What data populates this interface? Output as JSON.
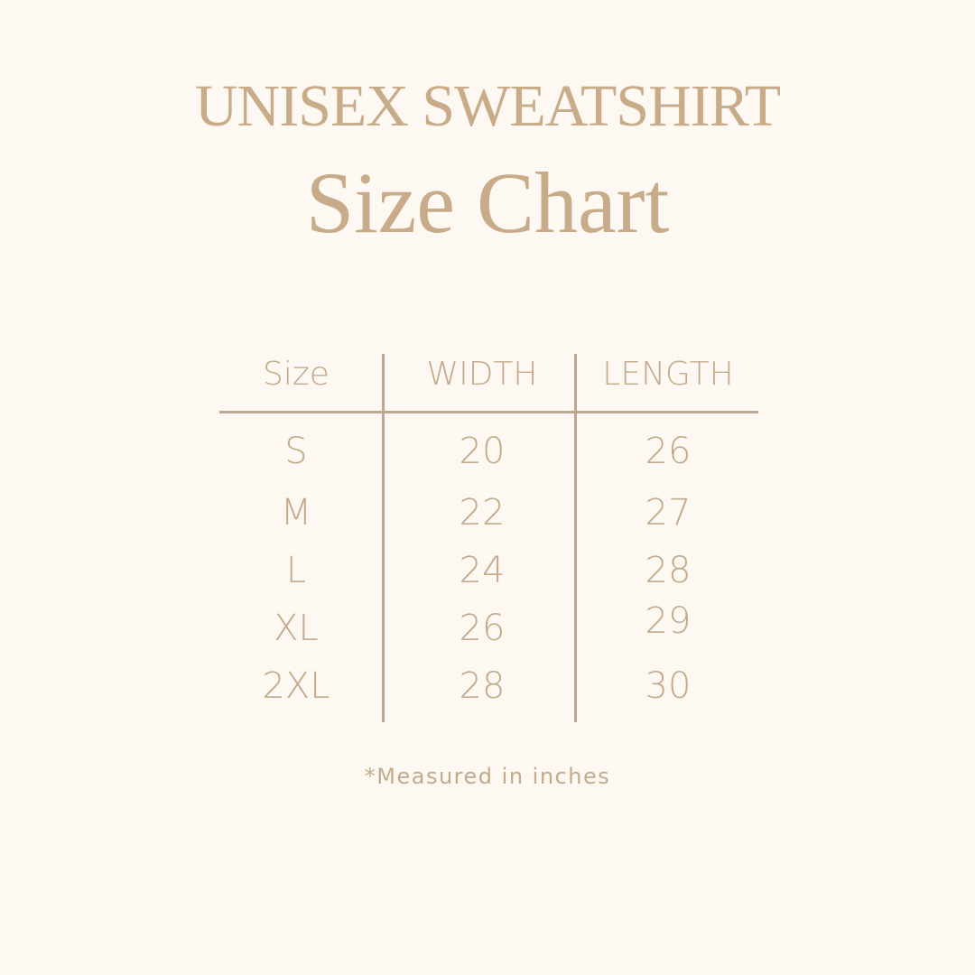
{
  "title": "UNISEX SWEATSHIRT",
  "subtitle": "Size Chart",
  "table": {
    "headers": [
      "Size",
      "WIDTH",
      "LENGTH"
    ],
    "rows": [
      [
        "S",
        "20",
        "26"
      ],
      [
        "M",
        "22",
        "27"
      ],
      [
        "L",
        "24",
        "28"
      ],
      [
        "XL",
        "26",
        "29"
      ],
      [
        "2XL",
        "28",
        "30"
      ]
    ]
  },
  "note": "*Measured in inches",
  "colors": {
    "background": "#fdf8f1",
    "text": "#c4aa8c",
    "lines": "#bba894"
  }
}
